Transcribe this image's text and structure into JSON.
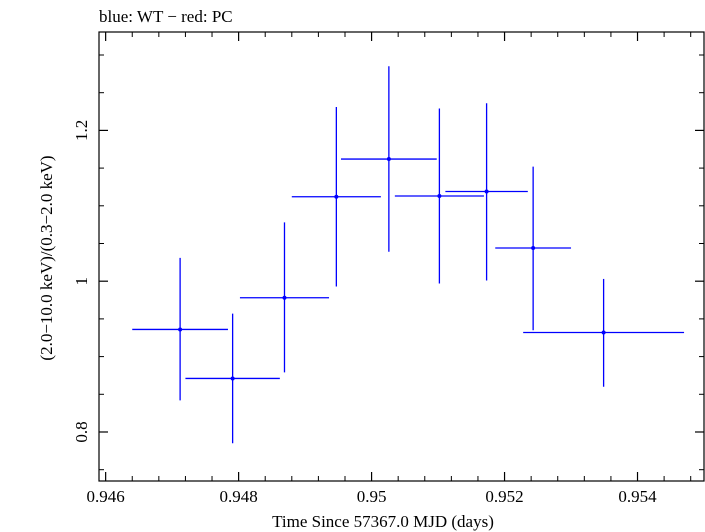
{
  "chart_data": {
    "type": "scatter",
    "title": "blue: WT − red: PC",
    "xlabel": "Time Since 57367.0 MJD (days)",
    "ylabel": "(2.0−10.0 keV)/(0.3−2.0 keV)",
    "xlim": [
      0.9459,
      0.955
    ],
    "ylim": [
      0.735,
      1.3305
    ],
    "x_ticks": [
      0.946,
      0.948,
      0.95,
      0.952,
      0.954
    ],
    "x_tick_labels": [
      "0.946",
      "0.948",
      "0.95",
      "0.952",
      "0.954"
    ],
    "y_ticks": [
      0.8,
      1.0,
      1.2
    ],
    "y_tick_labels": [
      "0.8",
      "1",
      "1.2"
    ],
    "grid": false,
    "series": [
      {
        "color": "#0000ff",
        "points": [
          {
            "x": 0.94712,
            "y": 0.936,
            "xerr_low": 0.00072,
            "xerr_high": 0.00072,
            "yerr_low": 0.094,
            "yerr_high": 0.095
          },
          {
            "x": 0.94791,
            "y": 0.871,
            "xerr_low": 0.00071,
            "xerr_high": 0.00071,
            "yerr_low": 0.086,
            "yerr_high": 0.086
          },
          {
            "x": 0.94869,
            "y": 0.978,
            "xerr_low": 0.00067,
            "xerr_high": 0.00067,
            "yerr_low": 0.099,
            "yerr_high": 0.1
          },
          {
            "x": 0.94947,
            "y": 1.112,
            "xerr_low": 0.00067,
            "xerr_high": 0.00067,
            "yerr_low": 0.119,
            "yerr_high": 0.119
          },
          {
            "x": 0.95026,
            "y": 1.162,
            "xerr_low": 0.00072,
            "xerr_high": 0.00072,
            "yerr_low": 0.123,
            "yerr_high": 0.123
          },
          {
            "x": 0.95102,
            "y": 1.113,
            "xerr_low": 0.00067,
            "xerr_high": 0.00067,
            "yerr_low": 0.116,
            "yerr_high": 0.116
          },
          {
            "x": 0.95173,
            "y": 1.119,
            "xerr_low": 0.00062,
            "xerr_high": 0.00062,
            "yerr_low": 0.118,
            "yerr_high": 0.117
          },
          {
            "x": 0.95243,
            "y": 1.044,
            "xerr_low": 0.00057,
            "xerr_high": 0.00057,
            "yerr_low": 0.109,
            "yerr_high": 0.108
          },
          {
            "x": 0.95349,
            "y": 0.932,
            "xerr_low": 0.00121,
            "xerr_high": 0.00121,
            "yerr_low": 0.072,
            "yerr_high": 0.071
          }
        ]
      }
    ]
  }
}
